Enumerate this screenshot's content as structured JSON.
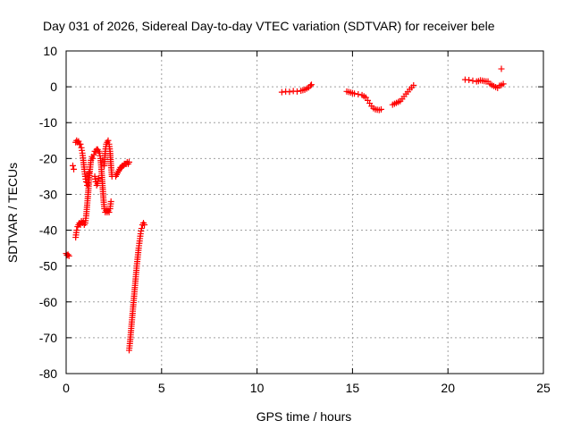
{
  "chart_data": {
    "type": "scatter",
    "title": "Day 031 of 2026, Sidereal Day-to-day VTEC variation (SDTVAR) for receiver bele",
    "xlabel": "GPS time / hours",
    "ylabel": "SDTVAR / TECUs",
    "xlim": [
      0,
      25
    ],
    "ylim": [
      -80,
      10
    ],
    "xticks": [
      0,
      5,
      10,
      15,
      20,
      25
    ],
    "xtick_labels": [
      "0",
      "5",
      "10",
      "15",
      "20",
      "25"
    ],
    "yticks": [
      10,
      0,
      -10,
      -20,
      -30,
      -40,
      -50,
      -60,
      -70,
      -80
    ],
    "ytick_labels": [
      "10",
      "0",
      "-10",
      "-20",
      "-30",
      "-40",
      "-50",
      "-60",
      "-70",
      "-80"
    ],
    "grid": true,
    "marker": "plus",
    "series": [
      {
        "name": "SDTVAR",
        "color": "#ff0000",
        "segments": [
          [
            [
              0.0,
              -46.5
            ],
            [
              0.05,
              -47
            ],
            [
              0.1,
              -46.8
            ],
            [
              0.15,
              -47.2
            ]
          ],
          [
            [
              0.35,
              -22
            ],
            [
              0.4,
              -23
            ]
          ],
          [
            [
              0.5,
              -42
            ],
            [
              0.55,
              -40
            ],
            [
              0.6,
              -39
            ],
            [
              0.65,
              -38.5
            ],
            [
              0.7,
              -38
            ],
            [
              0.75,
              -38.5
            ],
            [
              0.8,
              -37.5
            ],
            [
              0.85,
              -38
            ],
            [
              0.9,
              -37.5
            ],
            [
              0.95,
              -38.5
            ],
            [
              1.0,
              -38
            ],
            [
              1.05,
              -36
            ],
            [
              1.1,
              -33
            ],
            [
              1.15,
              -30
            ],
            [
              1.2,
              -26
            ],
            [
              1.25,
              -23
            ],
            [
              1.3,
              -20.5
            ],
            [
              1.35,
              -19.5
            ],
            [
              1.4,
              -20
            ],
            [
              1.45,
              -19
            ],
            [
              1.5,
              -18
            ],
            [
              1.55,
              -18
            ],
            [
              1.6,
              -17.5
            ],
            [
              1.65,
              -17.5
            ],
            [
              1.7,
              -18
            ],
            [
              1.75,
              -18.5
            ],
            [
              1.8,
              -20
            ],
            [
              1.85,
              -23
            ],
            [
              1.9,
              -27
            ],
            [
              1.95,
              -31
            ],
            [
              2.0,
              -34
            ],
            [
              2.05,
              -35
            ],
            [
              2.1,
              -34.5
            ],
            [
              2.15,
              -35
            ],
            [
              2.2,
              -34.5
            ],
            [
              2.25,
              -35
            ],
            [
              2.3,
              -34
            ],
            [
              2.35,
              -32
            ]
          ],
          [
            [
              0.5,
              -15.5
            ],
            [
              0.55,
              -15
            ],
            [
              0.6,
              -15.5
            ],
            [
              0.65,
              -15.2
            ],
            [
              0.7,
              -16
            ],
            [
              0.75,
              -16
            ],
            [
              0.8,
              -17
            ],
            [
              0.85,
              -18.5
            ],
            [
              0.9,
              -20.5
            ],
            [
              0.95,
              -23
            ],
            [
              1.0,
              -25
            ],
            [
              1.05,
              -26.5
            ],
            [
              1.1,
              -27.5
            ],
            [
              1.15,
              -26
            ],
            [
              1.2,
              -24
            ]
          ],
          [
            [
              1.5,
              -25
            ],
            [
              1.55,
              -26.5
            ],
            [
              1.6,
              -27.5
            ],
            [
              1.65,
              -27
            ],
            [
              1.7,
              -25.5
            ]
          ],
          [
            [
              2.0,
              -22
            ],
            [
              2.05,
              -18
            ],
            [
              2.1,
              -16
            ],
            [
              2.15,
              -15.5
            ],
            [
              2.2,
              -15
            ],
            [
              2.25,
              -16
            ],
            [
              2.3,
              -18
            ],
            [
              2.35,
              -22
            ],
            [
              2.4,
              -25
            ]
          ],
          [
            [
              2.6,
              -25
            ],
            [
              2.65,
              -24.5
            ],
            [
              2.7,
              -24
            ],
            [
              2.75,
              -23.5
            ],
            [
              2.8,
              -23
            ],
            [
              2.85,
              -22.5
            ],
            [
              2.9,
              -22.5
            ],
            [
              2.95,
              -22
            ],
            [
              3.0,
              -22
            ],
            [
              3.05,
              -21.5
            ],
            [
              3.1,
              -21.5
            ],
            [
              3.15,
              -21.5
            ],
            [
              3.2,
              -21
            ],
            [
              3.25,
              -21.5
            ],
            [
              3.3,
              -21
            ]
          ],
          [
            [
              3.3,
              -73.5
            ],
            [
              3.35,
              -71
            ],
            [
              3.4,
              -68
            ],
            [
              3.45,
              -65
            ],
            [
              3.5,
              -62
            ],
            [
              3.55,
              -59
            ],
            [
              3.6,
              -56
            ],
            [
              3.65,
              -53
            ],
            [
              3.7,
              -50
            ],
            [
              3.75,
              -47.5
            ],
            [
              3.8,
              -45
            ],
            [
              3.85,
              -43
            ],
            [
              3.9,
              -41
            ],
            [
              3.95,
              -39.5
            ],
            [
              4.0,
              -38.5
            ],
            [
              4.05,
              -38
            ],
            [
              4.1,
              -38.5
            ]
          ],
          [
            [
              11.3,
              -1.5
            ],
            [
              11.5,
              -1.3
            ],
            [
              11.7,
              -1.4
            ],
            [
              11.9,
              -1.2
            ],
            [
              12.1,
              -1.3
            ],
            [
              12.3,
              -1.1
            ],
            [
              12.5,
              -0.8
            ],
            [
              12.6,
              -0.5
            ],
            [
              12.7,
              -0.2
            ],
            [
              12.8,
              0.3
            ],
            [
              12.85,
              0.6
            ]
          ],
          [
            [
              14.7,
              -1.3
            ],
            [
              14.9,
              -1.6
            ],
            [
              15.1,
              -1.9
            ],
            [
              15.3,
              -2.1
            ],
            [
              15.5,
              -2.3
            ],
            [
              15.7,
              -3.0
            ],
            [
              15.8,
              -3.8
            ],
            [
              15.9,
              -4.6
            ],
            [
              16.0,
              -5.4
            ],
            [
              16.1,
              -6.0
            ],
            [
              16.2,
              -6.3
            ],
            [
              16.3,
              -6.4
            ],
            [
              16.4,
              -6.5
            ],
            [
              16.5,
              -6.3
            ]
          ],
          [
            [
              17.1,
              -5.0
            ],
            [
              17.3,
              -4.5
            ],
            [
              17.5,
              -4.0
            ],
            [
              17.6,
              -3.4
            ],
            [
              17.7,
              -2.7
            ],
            [
              17.8,
              -2.0
            ],
            [
              17.9,
              -1.4
            ],
            [
              18.0,
              -0.7
            ],
            [
              18.1,
              -0.2
            ],
            [
              18.2,
              0.4
            ]
          ],
          [
            [
              20.9,
              2.0
            ],
            [
              21.1,
              1.9
            ],
            [
              21.3,
              1.7
            ],
            [
              21.5,
              1.5
            ],
            [
              21.6,
              1.6
            ],
            [
              21.7,
              1.8
            ],
            [
              21.8,
              1.7
            ],
            [
              21.9,
              1.6
            ],
            [
              22.0,
              1.5
            ],
            [
              22.1,
              1.5
            ],
            [
              22.2,
              0.8
            ],
            [
              22.3,
              0.5
            ],
            [
              22.4,
              0.2
            ],
            [
              22.5,
              -0.1
            ],
            [
              22.6,
              -0.3
            ],
            [
              22.7,
              0.3
            ],
            [
              22.8,
              0.5
            ],
            [
              22.9,
              0.8
            ]
          ],
          [
            [
              22.8,
              5.0
            ]
          ]
        ]
      }
    ]
  }
}
